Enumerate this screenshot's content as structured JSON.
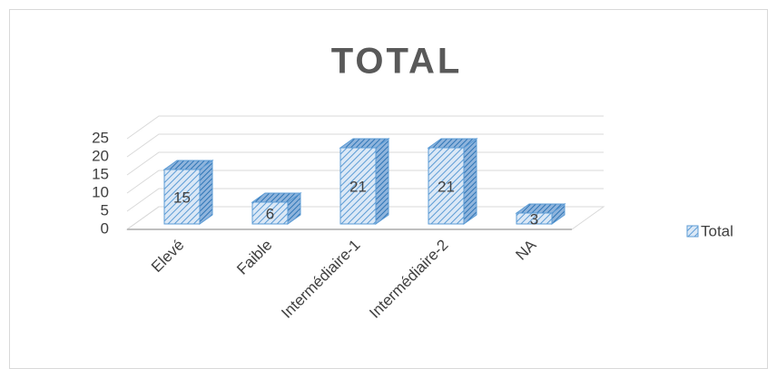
{
  "chart_data": {
    "type": "bar3d",
    "title": "TOTAL",
    "categories": [
      "Elevé",
      "Faible",
      "Intermédiaire-1",
      "Intermédiaire-2",
      "NA"
    ],
    "series": [
      {
        "name": "Total",
        "color": "#5b9bd5",
        "values": [
          15,
          6,
          21,
          21,
          3
        ]
      }
    ],
    "ylim": [
      0,
      25
    ],
    "yticks": [
      0,
      5,
      10,
      15,
      20,
      25
    ],
    "grid": true,
    "legend": "right"
  }
}
